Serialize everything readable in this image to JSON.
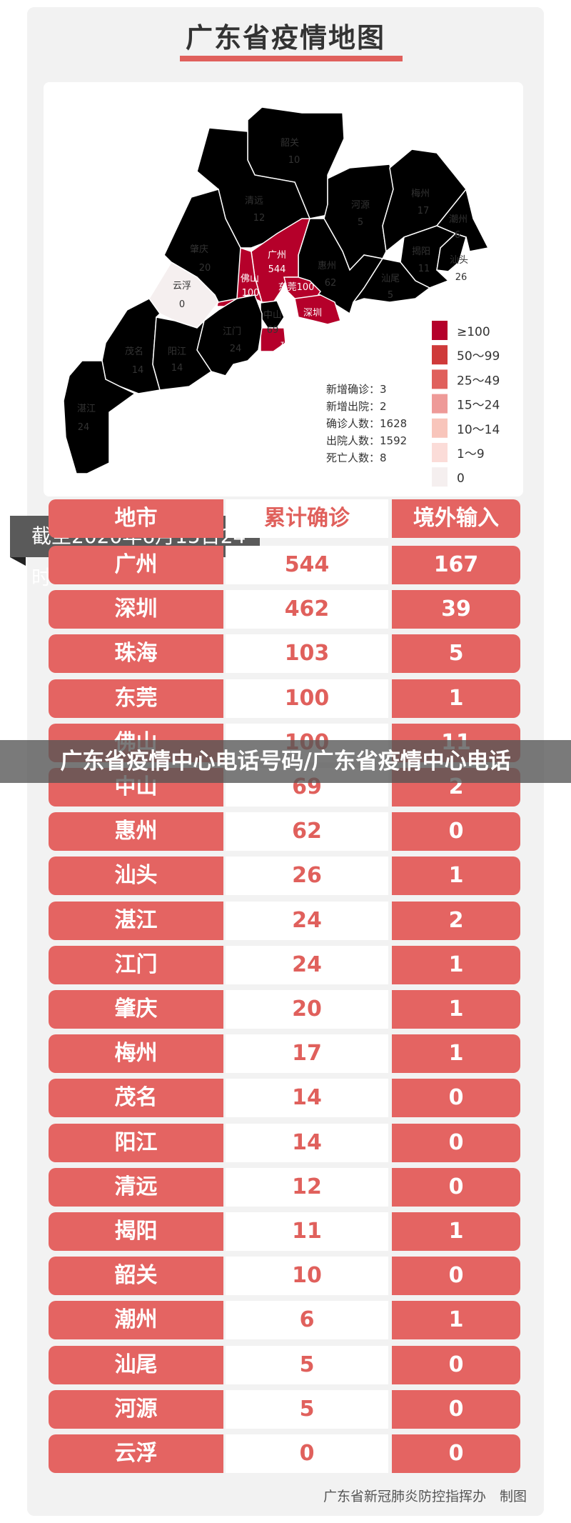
{
  "title": "广东省疫情地图",
  "map": {
    "regions": [
      {
        "name": "韶关",
        "value": "10",
        "bin": "10~14"
      },
      {
        "name": "清远",
        "value": "12",
        "bin": "10~14"
      },
      {
        "name": "河源",
        "value": "5",
        "bin": "1~9"
      },
      {
        "name": "梅州",
        "value": "17",
        "bin": "15~24"
      },
      {
        "name": "潮州",
        "value": "6",
        "bin": "1~9"
      },
      {
        "name": "揭阳",
        "value": "11",
        "bin": "10~14"
      },
      {
        "name": "汕头",
        "value": "26",
        "bin": "25~49"
      },
      {
        "name": "汕尾",
        "value": "5",
        "bin": "1~9"
      },
      {
        "name": "惠州",
        "value": "62",
        "bin": "50~99"
      },
      {
        "name": "广州",
        "value": "544",
        "bin": "≥100"
      },
      {
        "name": "佛山",
        "value": "100",
        "bin": "≥100"
      },
      {
        "name": "东莞",
        "value": "100",
        "bin": "≥100"
      },
      {
        "name": "深圳",
        "value": "462",
        "bin": "≥100"
      },
      {
        "name": "中山",
        "value": "69",
        "bin": "50~99"
      },
      {
        "name": "珠海",
        "value": "103",
        "bin": "≥100"
      },
      {
        "name": "江门",
        "value": "24",
        "bin": "15~24"
      },
      {
        "name": "肇庆",
        "value": "20",
        "bin": "15~24"
      },
      {
        "name": "云浮",
        "value": "0",
        "bin": "0"
      },
      {
        "name": "茂名",
        "value": "14",
        "bin": "10~14"
      },
      {
        "name": "阳江",
        "value": "14",
        "bin": "10~14"
      },
      {
        "name": "湛江",
        "value": "24",
        "bin": "15~24"
      }
    ],
    "legend": [
      {
        "label": "≥100",
        "color": "#b5002a"
      },
      {
        "label": "50～99",
        "color": "#cf3a3a"
      },
      {
        "label": "25～49",
        "color": "#e0605c"
      },
      {
        "label": "15～24",
        "color": "#ee9a98"
      },
      {
        "label": "10～14",
        "color": "#f8c5bb"
      },
      {
        "label": "1～9",
        "color": "#fbdcd8"
      },
      {
        "label": "0",
        "color": "#f5efef"
      }
    ],
    "stats": [
      "新增确诊：3",
      "新增出院：2",
      "确诊人数：1628",
      "出院人数：1592",
      "死亡人数：8"
    ]
  },
  "date_banner": "截至2020年6月15日24时",
  "table": {
    "headers": [
      "地市",
      "累计确诊",
      "境外输入"
    ],
    "rows": [
      [
        "广州",
        "544",
        "167"
      ],
      [
        "深圳",
        "462",
        "39"
      ],
      [
        "珠海",
        "103",
        "5"
      ],
      [
        "东莞",
        "100",
        "1"
      ],
      [
        "佛山",
        "100",
        "11"
      ],
      [
        "中山",
        "69",
        "2"
      ],
      [
        "惠州",
        "62",
        "0"
      ],
      [
        "汕头",
        "26",
        "1"
      ],
      [
        "湛江",
        "24",
        "2"
      ],
      [
        "江门",
        "24",
        "1"
      ],
      [
        "肇庆",
        "20",
        "1"
      ],
      [
        "梅州",
        "17",
        "1"
      ],
      [
        "茂名",
        "14",
        "0"
      ],
      [
        "阳江",
        "14",
        "0"
      ],
      [
        "清远",
        "12",
        "0"
      ],
      [
        "揭阳",
        "11",
        "1"
      ],
      [
        "韶关",
        "10",
        "0"
      ],
      [
        "潮州",
        "6",
        "1"
      ],
      [
        "汕尾",
        "5",
        "0"
      ],
      [
        "河源",
        "5",
        "0"
      ],
      [
        "云浮",
        "0",
        "0"
      ]
    ]
  },
  "footer": "广东省新冠肺炎防控指挥办　制图",
  "overlay_caption": "广东省疫情中心电话号码/广东省疫情中心电话"
}
